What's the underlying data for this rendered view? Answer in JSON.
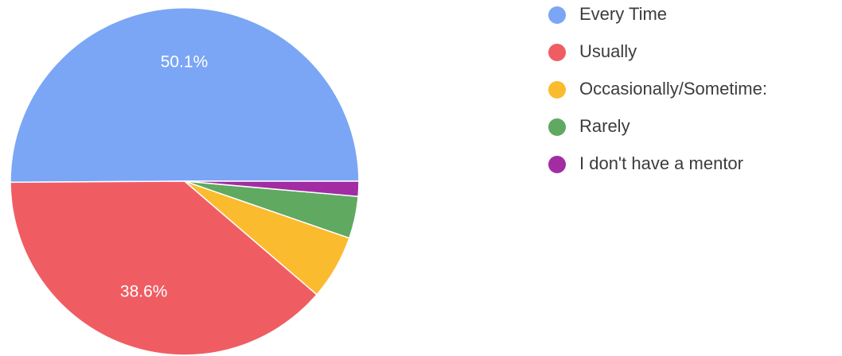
{
  "chart_data": {
    "type": "pie",
    "title": "",
    "start_angle_deg": 0,
    "direction": "counterclockwise",
    "legend_position": "right",
    "slices": [
      {
        "label": "Every Time",
        "value": 50.1,
        "display_label": "50.1%",
        "color": "#7ba6f5"
      },
      {
        "label": "Usually",
        "value": 38.6,
        "display_label": "38.6%",
        "color": "#ef5d63"
      },
      {
        "label": "Occasionally/Sometime:",
        "value": 6.0,
        "display_label": "",
        "color": "#fbbb2f"
      },
      {
        "label": "Rarely",
        "value": 3.9,
        "display_label": "",
        "color": "#5fa960"
      },
      {
        "label": "I don't have a mentor",
        "value": 1.4,
        "display_label": "",
        "color": "#a22da3"
      }
    ]
  }
}
